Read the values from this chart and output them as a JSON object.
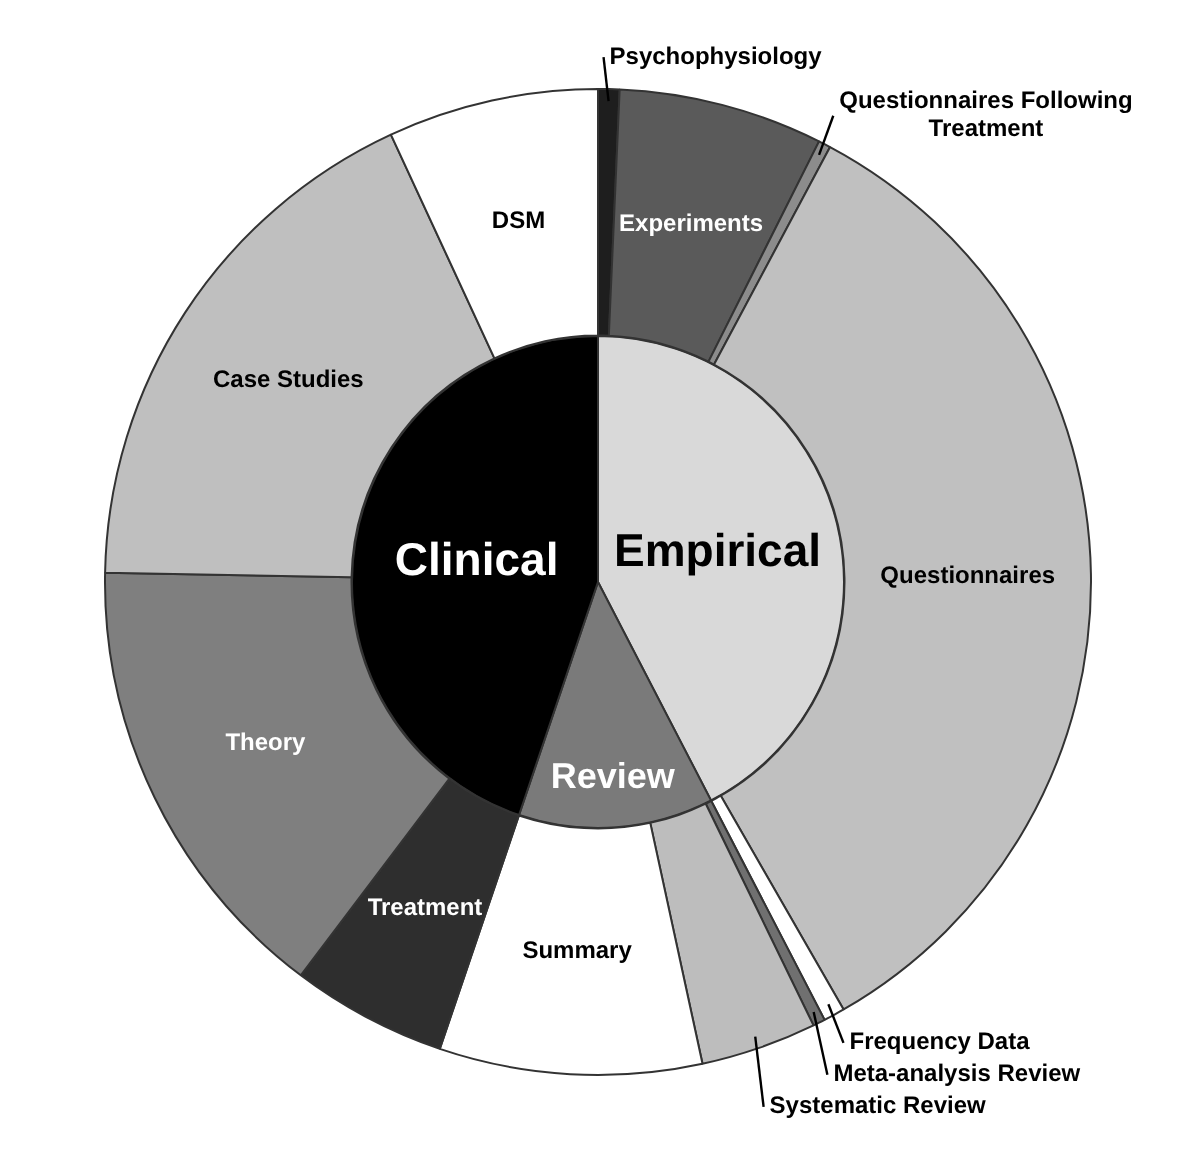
{
  "chart_data": [
    {
      "type": "donut",
      "categories": [
        "Psychophysiology",
        "Experiments",
        "Questionnaires Following Treatment",
        "Questionnaires",
        "Frequency Data",
        "Meta-analysis Review",
        "Systematic Review",
        "Summary",
        "Treatment",
        "Theory",
        "Case Studies",
        "DSM"
      ],
      "values": [
        0.7,
        6.7,
        0.4,
        33.9,
        0.7,
        0.4,
        3.8,
        8.6,
        5.1,
        15.0,
        17.8,
        6.9
      ],
      "colors": [
        "#1e1e1e",
        "#5a5a5a",
        "#8c8c8c",
        "#c0c0c0",
        "#ffffff",
        "#707070",
        "#bdbdbd",
        "#ffffff",
        "#2e2e2e",
        "#7f7f7f",
        "#bfbfbf",
        "#ffffff"
      ]
    },
    {
      "type": "pie",
      "categories": [
        "Empirical",
        "Review",
        "Clinical"
      ],
      "values": [
        42.4,
        12.8,
        44.8
      ],
      "colors": [
        "#d9d9d9",
        "#7a7a7a",
        "#000000"
      ]
    }
  ]
}
